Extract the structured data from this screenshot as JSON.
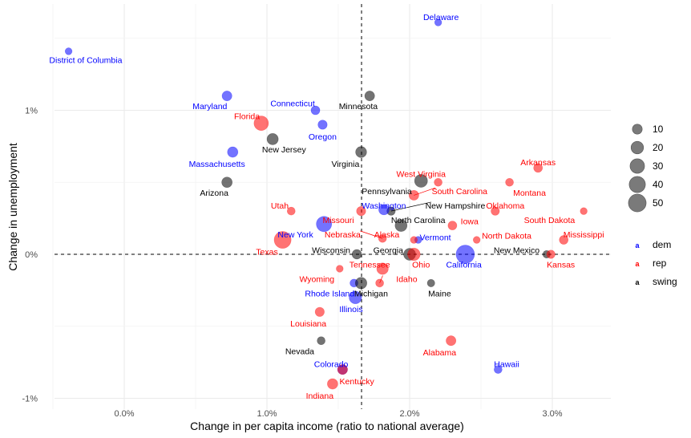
{
  "chart_data": {
    "type": "scatter",
    "title": "",
    "xlabel": "Change in per capita income (ratio to national average)",
    "ylabel": "Change in unemployment",
    "xlim": [
      -0.5,
      3.4
    ],
    "ylim": [
      -1.08,
      1.73
    ],
    "x_ticks": [
      0.0,
      1.0,
      2.0,
      3.0
    ],
    "x_tick_labels": [
      "0.0%",
      "1.0%",
      "2.0%",
      "3.0%"
    ],
    "y_ticks": [
      -1,
      0,
      1
    ],
    "y_tick_labels": [
      "-1%",
      "0%",
      "1%"
    ],
    "grid": true,
    "reference_lines": {
      "vertical_x": 1.663,
      "horizontal_y": 0
    },
    "colors": {
      "dem": "#0000ff",
      "rep": "#ff0000",
      "swing": "#000000"
    },
    "legend": {
      "size_title": "",
      "size_entries": [
        {
          "label": "10",
          "value": 10
        },
        {
          "label": "20",
          "value": 20
        },
        {
          "label": "30",
          "value": 30
        },
        {
          "label": "40",
          "value": 40
        },
        {
          "label": "50",
          "value": 50
        }
      ],
      "color_entries": [
        {
          "key": "dem",
          "label": "dem",
          "glyph": "a"
        },
        {
          "key": "rep",
          "label": "rep",
          "glyph": "a"
        },
        {
          "key": "swing",
          "label": "swing",
          "glyph": "a"
        }
      ],
      "placement": "right"
    },
    "points": [
      {
        "state": "District of Columbia",
        "x": -0.39,
        "y": 1.41,
        "size": 3,
        "group": "dem",
        "lx": -0.27,
        "ly": 1.35,
        "anchor": "middle"
      },
      {
        "state": "Delaware",
        "x": 2.2,
        "y": 1.61,
        "size": 3,
        "group": "dem",
        "lx": 2.22,
        "ly": 1.65,
        "anchor": "middle"
      },
      {
        "state": "Maryland",
        "x": 0.72,
        "y": 1.1,
        "size": 10,
        "group": "dem",
        "lx": 0.6,
        "ly": 1.03,
        "anchor": "middle"
      },
      {
        "state": "Connecticut",
        "x": 1.34,
        "y": 1.0,
        "size": 7,
        "group": "dem",
        "lx": 1.18,
        "ly": 1.05,
        "anchor": "middle"
      },
      {
        "state": "Minnesota",
        "x": 1.72,
        "y": 1.1,
        "size": 10,
        "group": "swing",
        "lx": 1.64,
        "ly": 1.03,
        "anchor": "middle"
      },
      {
        "state": "Florida",
        "x": 0.96,
        "y": 0.91,
        "size": 30,
        "group": "rep",
        "lx": 0.86,
        "ly": 0.96,
        "anchor": "middle"
      },
      {
        "state": "Oregon",
        "x": 1.39,
        "y": 0.9,
        "size": 8,
        "group": "dem",
        "lx": 1.39,
        "ly": 0.82,
        "anchor": "middle"
      },
      {
        "state": "New Jersey",
        "x": 1.04,
        "y": 0.8,
        "size": 15,
        "group": "swing",
        "lx": 1.12,
        "ly": 0.73,
        "anchor": "middle"
      },
      {
        "state": "Massachusetts",
        "x": 0.76,
        "y": 0.71,
        "size": 12,
        "group": "dem",
        "lx": 0.65,
        "ly": 0.63,
        "anchor": "middle"
      },
      {
        "state": "Virginia",
        "x": 1.66,
        "y": 0.71,
        "size": 14,
        "group": "swing",
        "lx": 1.55,
        "ly": 0.63,
        "anchor": "middle"
      },
      {
        "state": "Arizona",
        "x": 0.72,
        "y": 0.5,
        "size": 12,
        "group": "swing",
        "lx": 0.63,
        "ly": 0.43,
        "anchor": "middle"
      },
      {
        "state": "Arkansas",
        "x": 2.9,
        "y": 0.6,
        "size": 7,
        "group": "rep",
        "lx": 2.9,
        "ly": 0.64,
        "anchor": "middle"
      },
      {
        "state": "Montana",
        "x": 2.7,
        "y": 0.5,
        "size": 5,
        "group": "rep",
        "lx": 2.84,
        "ly": 0.43,
        "anchor": "middle"
      },
      {
        "state": "West Virginia",
        "x": 2.2,
        "y": 0.5,
        "size": 5,
        "group": "rep",
        "lx": 2.08,
        "ly": 0.56,
        "anchor": "middle"
      },
      {
        "state": "Pennsylvania",
        "x": 2.08,
        "y": 0.51,
        "size": 22,
        "group": "swing",
        "lx": 1.84,
        "ly": 0.44,
        "anchor": "middle"
      },
      {
        "state": "South Carolina",
        "x": 2.03,
        "y": 0.41,
        "size": 10,
        "group": "rep",
        "lx": 2.35,
        "ly": 0.44,
        "anchor": "middle",
        "leader": true
      },
      {
        "state": "New Hampshire",
        "x": 1.87,
        "y": 0.3,
        "size": 6,
        "group": "swing",
        "lx": 2.32,
        "ly": 0.34,
        "anchor": "middle",
        "leader": true
      },
      {
        "state": "Washington",
        "x": 1.82,
        "y": 0.31,
        "size": 12,
        "group": "dem",
        "lx": 1.82,
        "ly": 0.34,
        "anchor": "middle"
      },
      {
        "state": "Missouri",
        "x": 1.66,
        "y": 0.3,
        "size": 8,
        "group": "rep",
        "lx": 1.5,
        "ly": 0.24,
        "anchor": "middle"
      },
      {
        "state": "Utah",
        "x": 1.17,
        "y": 0.3,
        "size": 5,
        "group": "rep",
        "lx": 1.09,
        "ly": 0.34,
        "anchor": "middle"
      },
      {
        "state": "Oklahoma",
        "x": 2.6,
        "y": 0.3,
        "size": 6,
        "group": "rep",
        "lx": 2.67,
        "ly": 0.34,
        "anchor": "middle"
      },
      {
        "state": "South Dakota",
        "x": 3.22,
        "y": 0.3,
        "size": 3,
        "group": "rep",
        "lx": 2.98,
        "ly": 0.24,
        "anchor": "middle"
      },
      {
        "state": "North Carolina",
        "x": 1.94,
        "y": 0.2,
        "size": 18,
        "group": "swing",
        "lx": 2.06,
        "ly": 0.24,
        "anchor": "middle"
      },
      {
        "state": "Iowa",
        "x": 2.3,
        "y": 0.2,
        "size": 7,
        "group": "rep",
        "lx": 2.42,
        "ly": 0.23,
        "anchor": "middle"
      },
      {
        "state": "New York",
        "x": 1.4,
        "y": 0.21,
        "size": 35,
        "group": "dem",
        "lx": 1.2,
        "ly": 0.14,
        "anchor": "middle"
      },
      {
        "state": "Texas",
        "x": 1.11,
        "y": 0.1,
        "size": 45,
        "group": "rep",
        "lx": 1.0,
        "ly": 0.02,
        "anchor": "middle"
      },
      {
        "state": "Nebraska",
        "x": 1.81,
        "y": 0.11,
        "size": 5,
        "group": "rep",
        "lx": 1.53,
        "ly": 0.14,
        "anchor": "middle",
        "leader": true
      },
      {
        "state": "Alaska",
        "x": 1.81,
        "y": 0.11,
        "size": 5,
        "group": "rep",
        "lx": 1.84,
        "ly": 0.14,
        "anchor": "middle",
        "hidden_point": true
      },
      {
        "state": "Vermont",
        "x": 2.06,
        "y": 0.1,
        "size": 3,
        "group": "dem",
        "lx": 2.18,
        "ly": 0.12,
        "anchor": "middle"
      },
      {
        "state": "(unlabeled)",
        "x": 2.03,
        "y": 0.1,
        "size": 3,
        "group": "rep",
        "lx": null,
        "ly": null,
        "anchor": "middle"
      },
      {
        "state": "North Dakota",
        "x": 2.47,
        "y": 0.1,
        "size": 3,
        "group": "rep",
        "lx": 2.68,
        "ly": 0.13,
        "anchor": "middle"
      },
      {
        "state": "Mississippi",
        "x": 3.08,
        "y": 0.1,
        "size": 7,
        "group": "rep",
        "lx": 3.22,
        "ly": 0.14,
        "anchor": "middle"
      },
      {
        "state": "Wisconsin",
        "x": 1.63,
        "y": 0.0,
        "size": 9,
        "group": "swing",
        "lx": 1.45,
        "ly": 0.03,
        "anchor": "middle"
      },
      {
        "state": "Georgia",
        "x": 2.0,
        "y": 0.0,
        "size": 18,
        "group": "swing",
        "lx": 1.85,
        "ly": 0.03,
        "anchor": "middle"
      },
      {
        "state": "Ohio",
        "x": 2.03,
        "y": 0.0,
        "size": 20,
        "group": "rep",
        "lx": 2.08,
        "ly": -0.07,
        "anchor": "middle"
      },
      {
        "state": "California",
        "x": 2.39,
        "y": 0.0,
        "size": 55,
        "group": "dem",
        "lx": 2.38,
        "ly": -0.07,
        "anchor": "middle"
      },
      {
        "state": "New Mexico",
        "x": 2.96,
        "y": 0.0,
        "size": 4,
        "group": "swing",
        "lx": 2.75,
        "ly": 0.03,
        "anchor": "middle"
      },
      {
        "state": "Kansas",
        "x": 2.99,
        "y": 0.0,
        "size": 6,
        "group": "rep",
        "lx": 3.06,
        "ly": -0.07,
        "anchor": "middle"
      },
      {
        "state": "Wyoming",
        "x": 1.51,
        "y": -0.1,
        "size": 3,
        "group": "rep",
        "lx": 1.35,
        "ly": -0.17,
        "anchor": "middle"
      },
      {
        "state": "Tennessee",
        "x": 1.81,
        "y": -0.1,
        "size": 16,
        "group": "rep",
        "lx": 1.72,
        "ly": -0.07,
        "anchor": "middle"
      },
      {
        "state": "Rhode Island",
        "x": 1.61,
        "y": -0.2,
        "size": 5,
        "group": "dem",
        "lx": 1.44,
        "ly": -0.27,
        "anchor": "middle"
      },
      {
        "state": "Michigan",
        "x": 1.66,
        "y": -0.2,
        "size": 16,
        "group": "swing",
        "lx": 1.73,
        "ly": -0.27,
        "anchor": "middle"
      },
      {
        "state": "Idaho",
        "x": 1.79,
        "y": -0.2,
        "size": 5,
        "group": "rep",
        "lx": 1.98,
        "ly": -0.17,
        "anchor": "middle",
        "leader": true
      },
      {
        "state": "Maine",
        "x": 2.15,
        "y": -0.2,
        "size": 4,
        "group": "swing",
        "lx": 2.21,
        "ly": -0.27,
        "anchor": "middle"
      },
      {
        "state": "Illinois",
        "x": 1.62,
        "y": -0.3,
        "size": 20,
        "group": "dem",
        "lx": 1.59,
        "ly": -0.38,
        "anchor": "middle"
      },
      {
        "state": "Louisiana",
        "x": 1.37,
        "y": -0.4,
        "size": 8,
        "group": "rep",
        "lx": 1.29,
        "ly": -0.48,
        "anchor": "middle"
      },
      {
        "state": "Nevada",
        "x": 1.38,
        "y": -0.6,
        "size": 5,
        "group": "swing",
        "lx": 1.23,
        "ly": -0.67,
        "anchor": "middle"
      },
      {
        "state": "Alabama",
        "x": 2.29,
        "y": -0.6,
        "size": 10,
        "group": "rep",
        "lx": 2.21,
        "ly": -0.68,
        "anchor": "middle"
      },
      {
        "state": "Hawaii",
        "x": 2.62,
        "y": -0.8,
        "size": 5,
        "group": "dem",
        "lx": 2.68,
        "ly": -0.76,
        "anchor": "middle"
      },
      {
        "state": "Colorado",
        "x": 1.53,
        "y": -0.8,
        "size": 10,
        "group": "dem",
        "lx": 1.45,
        "ly": -0.76,
        "anchor": "middle"
      },
      {
        "state": "Kentucky",
        "x": 1.53,
        "y": -0.8,
        "size": 10,
        "group": "rep",
        "lx": 1.63,
        "ly": -0.88,
        "anchor": "middle"
      },
      {
        "state": "Indiana",
        "x": 1.46,
        "y": -0.9,
        "size": 12,
        "group": "rep",
        "lx": 1.37,
        "ly": -0.98,
        "anchor": "middle"
      }
    ]
  }
}
